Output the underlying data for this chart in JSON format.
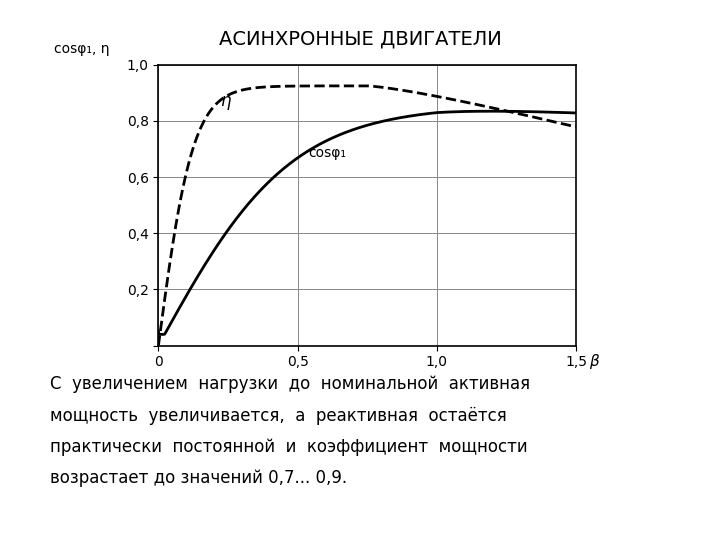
{
  "title": "АСИНХРОННЫЕ ДВИГАТЕЛИ",
  "ylabel": "cosφ₁, η",
  "xlabel": "β",
  "xlim": [
    0,
    1.5
  ],
  "ylim": [
    0,
    1.0
  ],
  "xticks": [
    0,
    0.5,
    1.0,
    1.5
  ],
  "yticks": [
    0,
    0.2,
    0.4,
    0.6,
    0.8,
    1.0
  ],
  "xtick_labels": [
    "0",
    "0,5",
    "1,0",
    "1,5"
  ],
  "ytick_labels": [
    "",
    "0,2",
    "0,4",
    "0,6",
    "0,8",
    "1,0"
  ],
  "eta_label": "η",
  "cos_label": "cosφ₁",
  "body_text_line1": "С  увеличением  нагрузки  до  номинальной  активная",
  "body_text_line2": "мощность  увеличивается,  а  реактивная  остаётся",
  "body_text_line3": "практически  постоянной  и  коэффициент  мощности",
  "body_text_line4": "возрастает до значений 0,7... 0,9.",
  "background_color": "#ffffff",
  "line_color": "#000000"
}
